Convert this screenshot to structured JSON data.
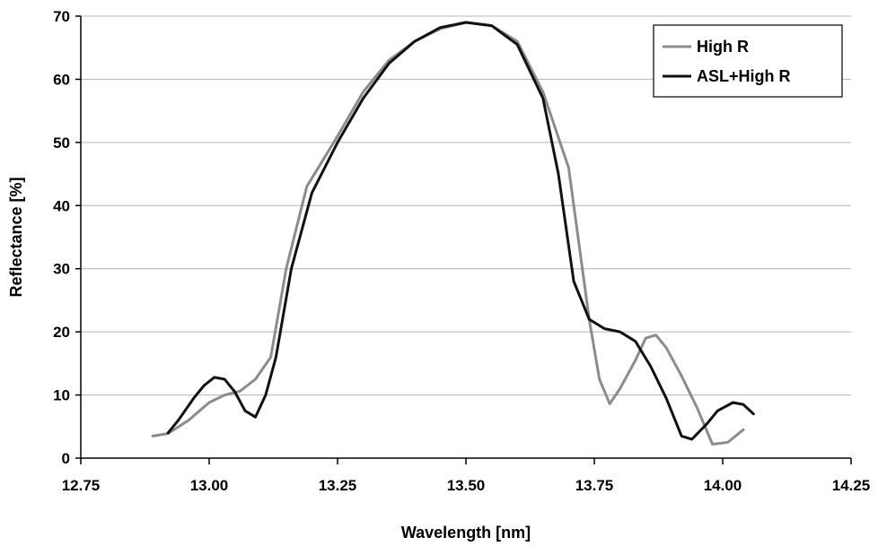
{
  "chart_data": {
    "type": "line",
    "xlabel": "Wavelength  [nm]",
    "ylabel": "Reflectance  [%]",
    "xlim": [
      12.75,
      14.25
    ],
    "ylim": [
      0,
      70
    ],
    "x_ticks": [
      "12.75",
      "13.00",
      "13.25",
      "13.50",
      "13.75",
      "14.00",
      "14.25"
    ],
    "y_ticks": [
      "0",
      "10",
      "20",
      "30",
      "40",
      "50",
      "60",
      "70"
    ],
    "grid": "horizontal",
    "legend_position": "top-right",
    "series": [
      {
        "name": "High R",
        "color": "#8c8c8c",
        "x": [
          12.89,
          12.92,
          12.96,
          13.0,
          13.03,
          13.06,
          13.09,
          13.12,
          13.15,
          13.19,
          13.25,
          13.3,
          13.35,
          13.4,
          13.45,
          13.5,
          13.55,
          13.6,
          13.65,
          13.7,
          13.74,
          13.76,
          13.78,
          13.8,
          13.83,
          13.85,
          13.87,
          13.89,
          13.92,
          13.95,
          13.98,
          14.01,
          14.04
        ],
        "y": [
          3.5,
          3.9,
          6.0,
          8.8,
          10.0,
          10.6,
          12.5,
          16.0,
          30.0,
          43.0,
          51.0,
          58.0,
          63.0,
          66.0,
          68.0,
          69.0,
          68.5,
          66.0,
          58.0,
          46.0,
          22.0,
          12.5,
          8.6,
          11.0,
          15.5,
          19.0,
          19.5,
          17.5,
          13.0,
          8.0,
          2.2,
          2.5,
          4.5
        ]
      },
      {
        "name": "ASL+High R",
        "color": "#111111",
        "x": [
          12.92,
          12.94,
          12.97,
          12.99,
          13.01,
          13.03,
          13.05,
          13.07,
          13.09,
          13.11,
          13.13,
          13.16,
          13.2,
          13.25,
          13.3,
          13.35,
          13.4,
          13.45,
          13.5,
          13.55,
          13.6,
          13.65,
          13.68,
          13.71,
          13.74,
          13.77,
          13.8,
          13.83,
          13.86,
          13.89,
          13.92,
          13.94,
          13.97,
          13.99,
          14.02,
          14.04,
          14.06
        ],
        "y": [
          4.0,
          6.0,
          9.5,
          11.5,
          12.8,
          12.5,
          10.5,
          7.5,
          6.5,
          10.0,
          16.0,
          30.0,
          42.0,
          50.0,
          57.0,
          62.5,
          66.0,
          68.2,
          69.0,
          68.5,
          65.5,
          57.0,
          45.0,
          28.0,
          22.0,
          20.5,
          20.0,
          18.5,
          14.5,
          9.5,
          3.5,
          3.0,
          5.5,
          7.5,
          8.8,
          8.5,
          7.0
        ]
      }
    ]
  }
}
